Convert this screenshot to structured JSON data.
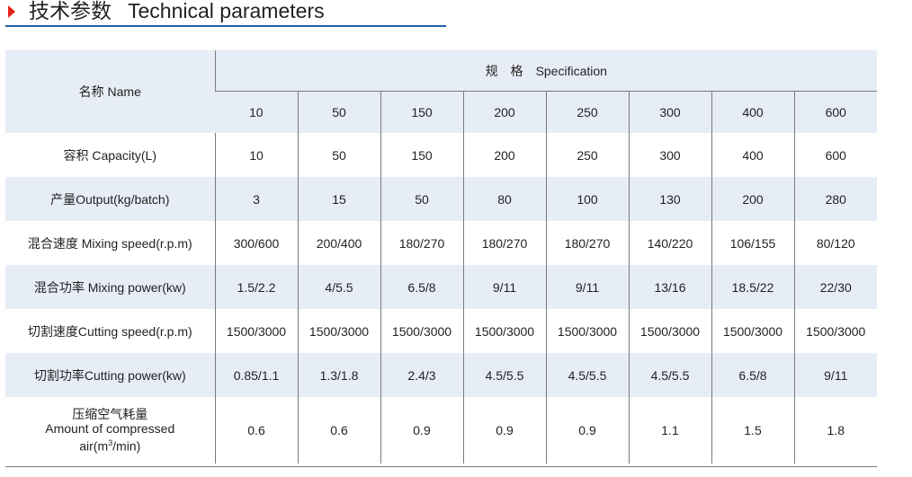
{
  "header": {
    "title_cn": "技术参数",
    "title_en": "Technical parameters"
  },
  "table": {
    "name_header": "名称 Name",
    "spec_header_cn": "规　格",
    "spec_header_en": "Specification",
    "spec_values": [
      "10",
      "50",
      "150",
      "200",
      "250",
      "300",
      "400",
      "600"
    ],
    "rows": [
      {
        "label": "容积 Capacity(L)",
        "values": [
          "10",
          "50",
          "150",
          "200",
          "250",
          "300",
          "400",
          "600"
        ]
      },
      {
        "label": "产量Output(kg/batch)",
        "values": [
          "3",
          "15",
          "50",
          "80",
          "100",
          "130",
          "200",
          "280"
        ]
      },
      {
        "label": "混合速度 Mixing speed(r.p.m)",
        "values": [
          "300/600",
          "200/400",
          "180/270",
          "180/270",
          "180/270",
          "140/220",
          "106/155",
          "80/120"
        ]
      },
      {
        "label": "混合功率 Mixing power(kw)",
        "values": [
          "1.5/2.2",
          "4/5.5",
          "6.5/8",
          "9/11",
          "9/11",
          "13/16",
          "18.5/22",
          "22/30"
        ]
      },
      {
        "label": "切割速度Cutting speed(r.p.m)",
        "values": [
          "1500/3000",
          "1500/3000",
          "1500/3000",
          "1500/3000",
          "1500/3000",
          "1500/3000",
          "1500/3000",
          "1500/3000"
        ]
      },
      {
        "label": "切割功率Cutting power(kw)",
        "values": [
          "0.85/1.1",
          "1.3/1.8",
          "2.4/3",
          "4.5/5.5",
          "4.5/5.5",
          "4.5/5.5",
          "6.5/8",
          "9/11"
        ]
      }
    ],
    "last_row": {
      "label_cn": "压缩空气耗量",
      "label_en_1": "Amount of compressed",
      "label_en_2_pre": "air(m",
      "label_en_2_sup": "3",
      "label_en_2_post": "/min)",
      "values": [
        "0.6",
        "0.6",
        "0.9",
        "0.9",
        "0.9",
        "1.1",
        "1.5",
        "1.8"
      ]
    }
  },
  "colors": {
    "accent_red": "#e2231a",
    "underline_blue": "#1f60a8",
    "band_blue": "#e7edf6"
  }
}
